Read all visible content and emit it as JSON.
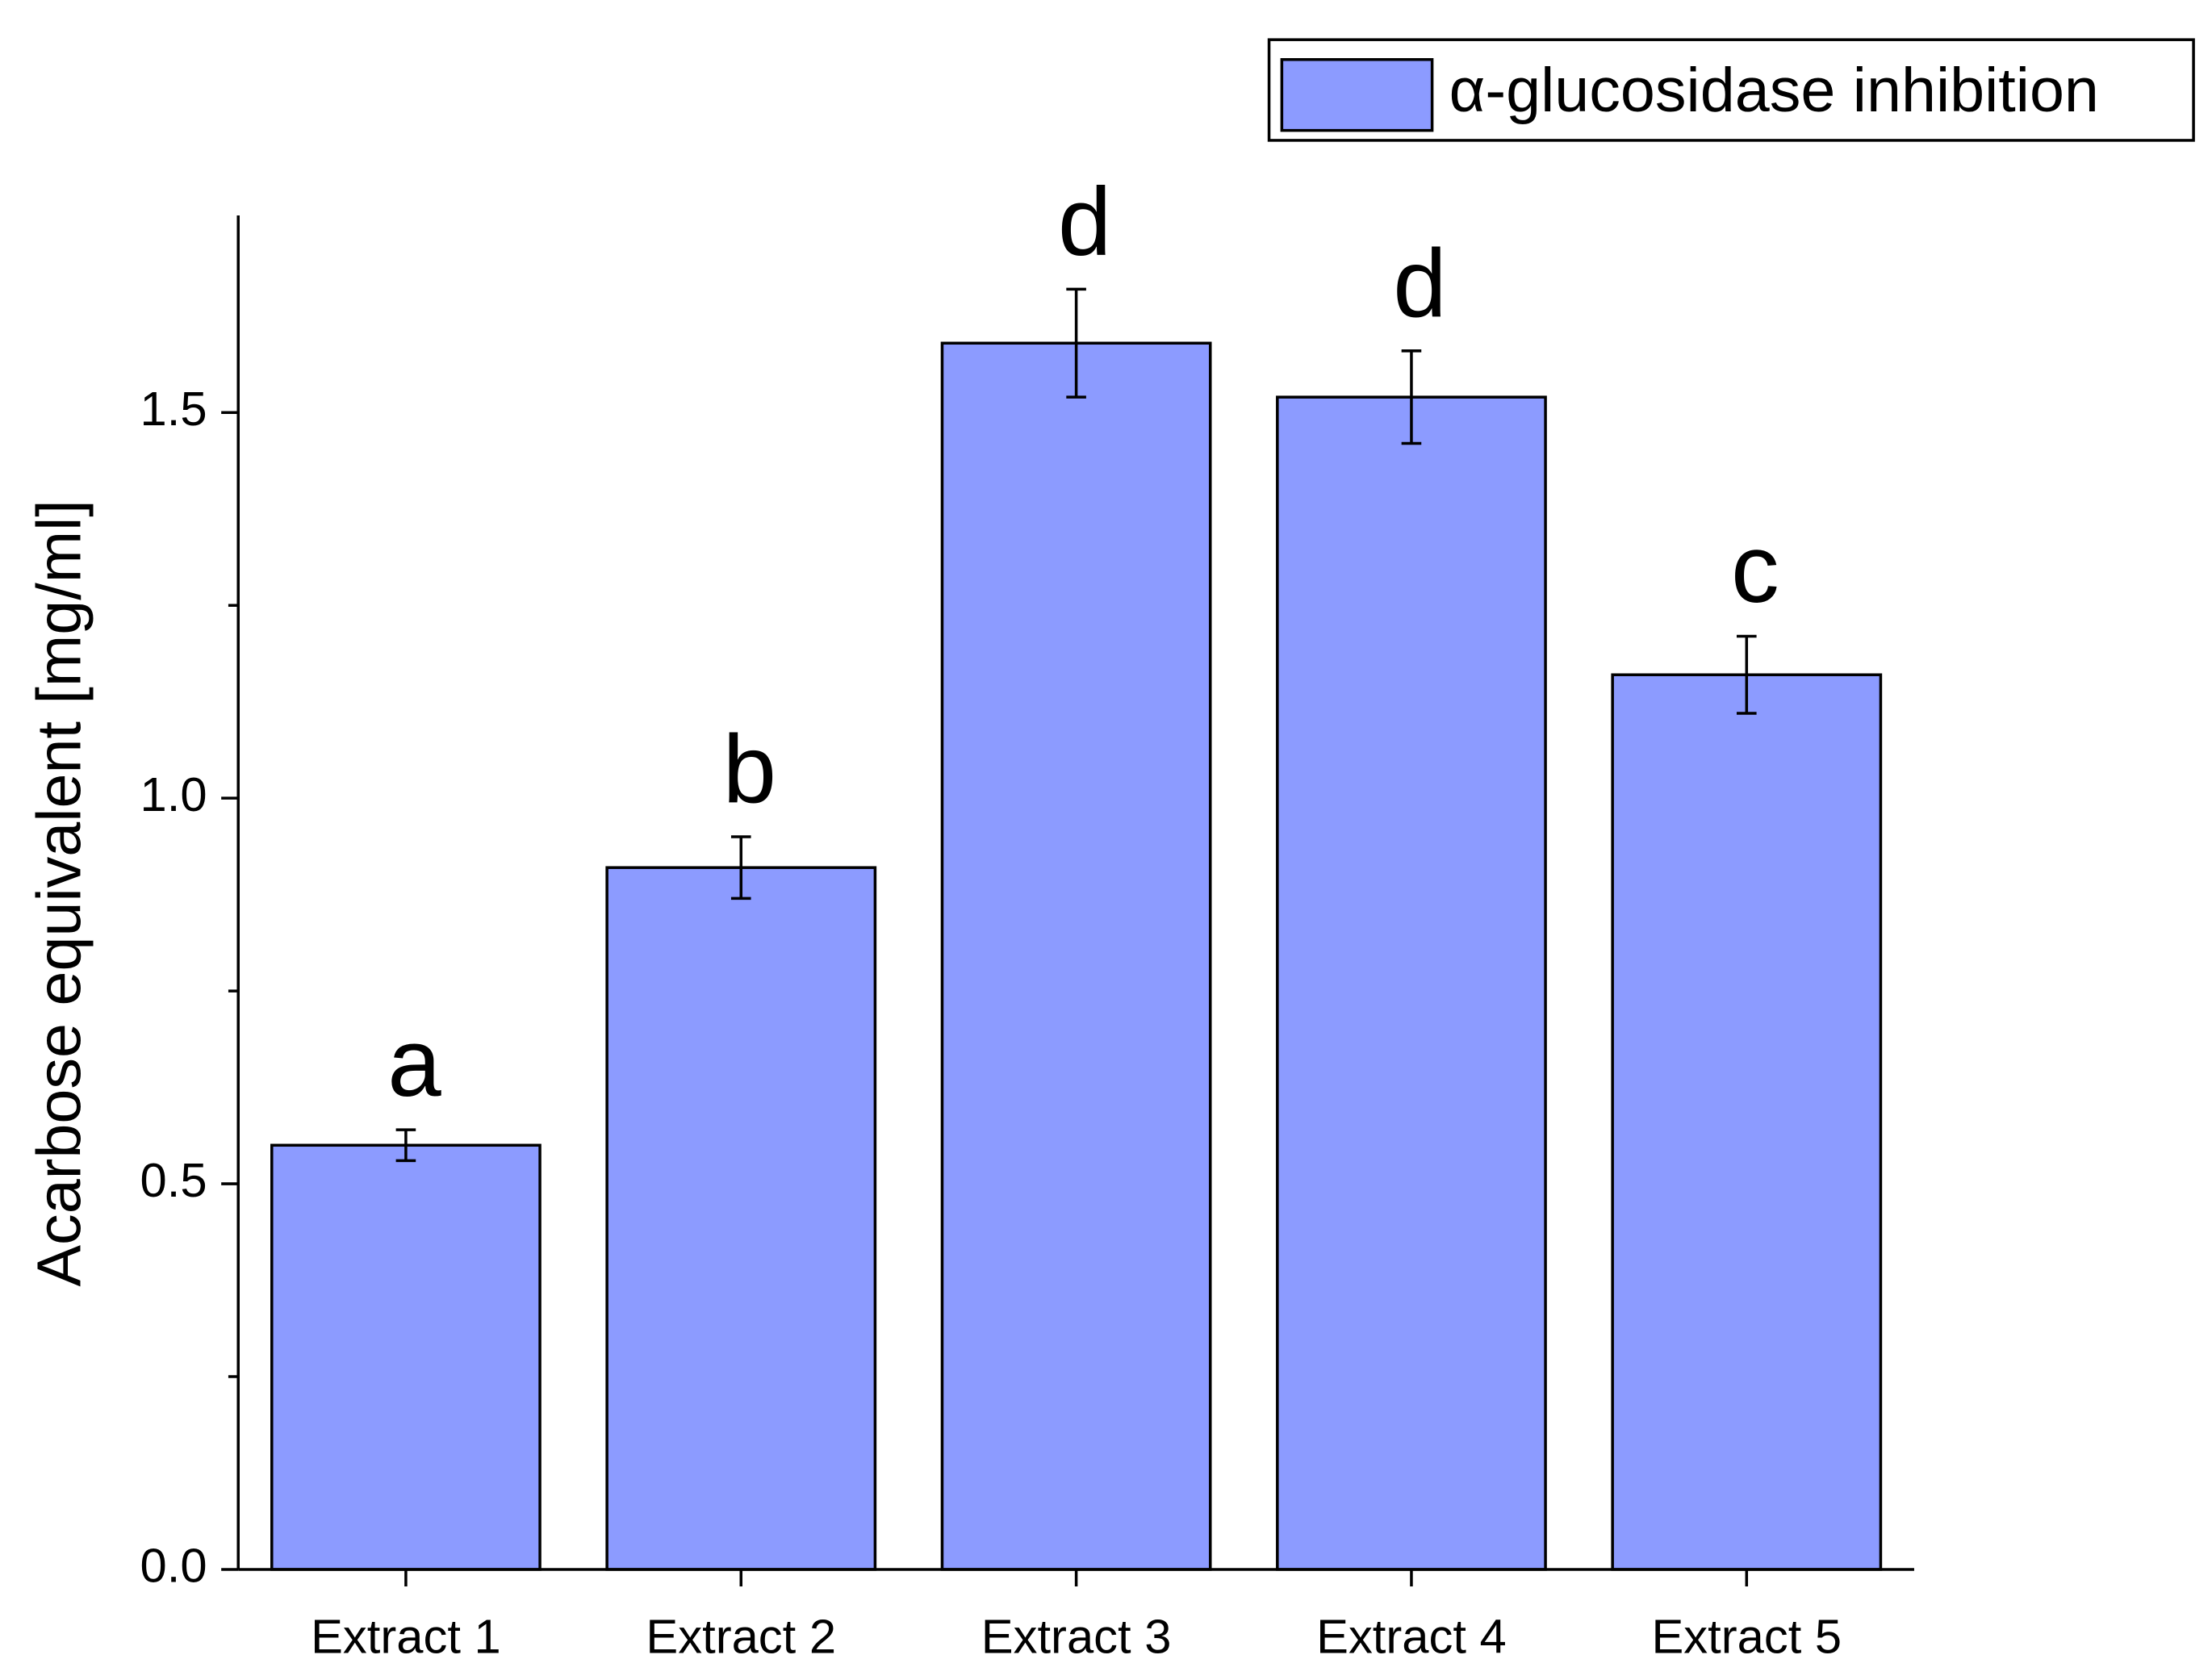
{
  "chart_data": {
    "type": "bar",
    "y_label": "Acarbose equivalent [mg/ml]",
    "categories": [
      "Extract 1",
      "Extract 2",
      "Extract 3",
      "Extract 4",
      "Extract 5"
    ],
    "series": [
      {
        "name": "α-glucosidase inhibition",
        "color": "#8c9bff",
        "values": [
          0.55,
          0.91,
          1.59,
          1.52,
          1.16
        ],
        "errors": [
          0.02,
          0.04,
          0.07,
          0.06,
          0.05
        ]
      }
    ],
    "annotations": [
      "a",
      "b",
      "d",
      "d",
      "c"
    ],
    "ylim": [
      0,
      1.75
    ],
    "yticks": [
      {
        "value": 0,
        "label": "0.0"
      },
      0.5,
      {
        "value": 1,
        "label": "1.0"
      },
      1.5
    ],
    "minor_yticks": [
      0.25,
      0.75,
      1.25
    ],
    "legend": "upper right"
  }
}
